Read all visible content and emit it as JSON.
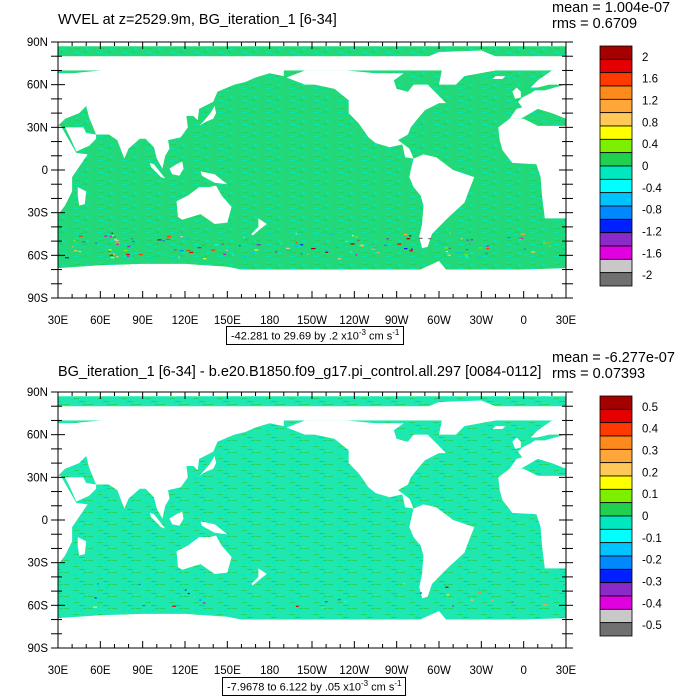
{
  "chart_data": [
    {
      "type": "heatmap",
      "title": "WVEL at z=2529.9m, BG_iteration_1 [6-34]",
      "stats": {
        "mean": "mean = 1.004e-07",
        "rms": "rms = 0.6709"
      },
      "x_ticks": [
        "30E",
        "60E",
        "90E",
        "120E",
        "150E",
        "180",
        "150W",
        "120W",
        "90W",
        "60W",
        "30W",
        "0",
        "30E"
      ],
      "y_ticks": [
        "90N",
        "60N",
        "30N",
        "0",
        "30S",
        "60S",
        "90S"
      ],
      "xlim": [
        30,
        390
      ],
      "ylim": [
        -90,
        90
      ],
      "colorbar_labels": [
        "2",
        "1.6",
        "1.2",
        "0.8",
        "0.4",
        "0",
        "-0.4",
        "-0.8",
        "-1.2",
        "-1.6",
        "-2"
      ],
      "range_text": "-42.281 to 29.69 by .2 x10",
      "range_exp": "-3",
      "range_units": " cm s",
      "range_units_exp": "-1"
    },
    {
      "type": "heatmap",
      "title": "BG_iteration_1 [6-34] - b.e20.B1850.f09_g17.pi_control.all.297 [0084-0112]",
      "stats": {
        "mean": "mean = -6.277e-07",
        "rms": "rms = 0.07393"
      },
      "x_ticks": [
        "30E",
        "60E",
        "90E",
        "120E",
        "150E",
        "180",
        "150W",
        "120W",
        "90W",
        "60W",
        "30W",
        "0",
        "30E"
      ],
      "y_ticks": [
        "90N",
        "60N",
        "30N",
        "0",
        "30S",
        "60S",
        "90S"
      ],
      "xlim": [
        30,
        390
      ],
      "ylim": [
        -90,
        90
      ],
      "colorbar_labels": [
        "0.5",
        "0.4",
        "0.3",
        "0.2",
        "0.1",
        "0",
        "-0.1",
        "-0.2",
        "-0.3",
        "-0.4",
        "-0.5"
      ],
      "range_text": "-7.9678 to 6.122 by .05 x10",
      "range_exp": "-3",
      "range_units": " cm s",
      "range_units_exp": "-1"
    }
  ],
  "colors": {
    "palette": [
      "#a50000",
      "#e40000",
      "#ff3a00",
      "#ff8a1c",
      "#ffa63a",
      "#ffc858",
      "#ffff00",
      "#7cf000",
      "#22d050",
      "#00e8c0",
      "#00ffff",
      "#00c4ff",
      "#0088ff",
      "#0020ff",
      "#8a2ac8",
      "#e000e0",
      "#c8c8c8",
      "#707070"
    ],
    "ocean_base_top": "#22d878",
    "ocean_base_bottom": "#1ee8b0",
    "land": "#ffffff"
  }
}
